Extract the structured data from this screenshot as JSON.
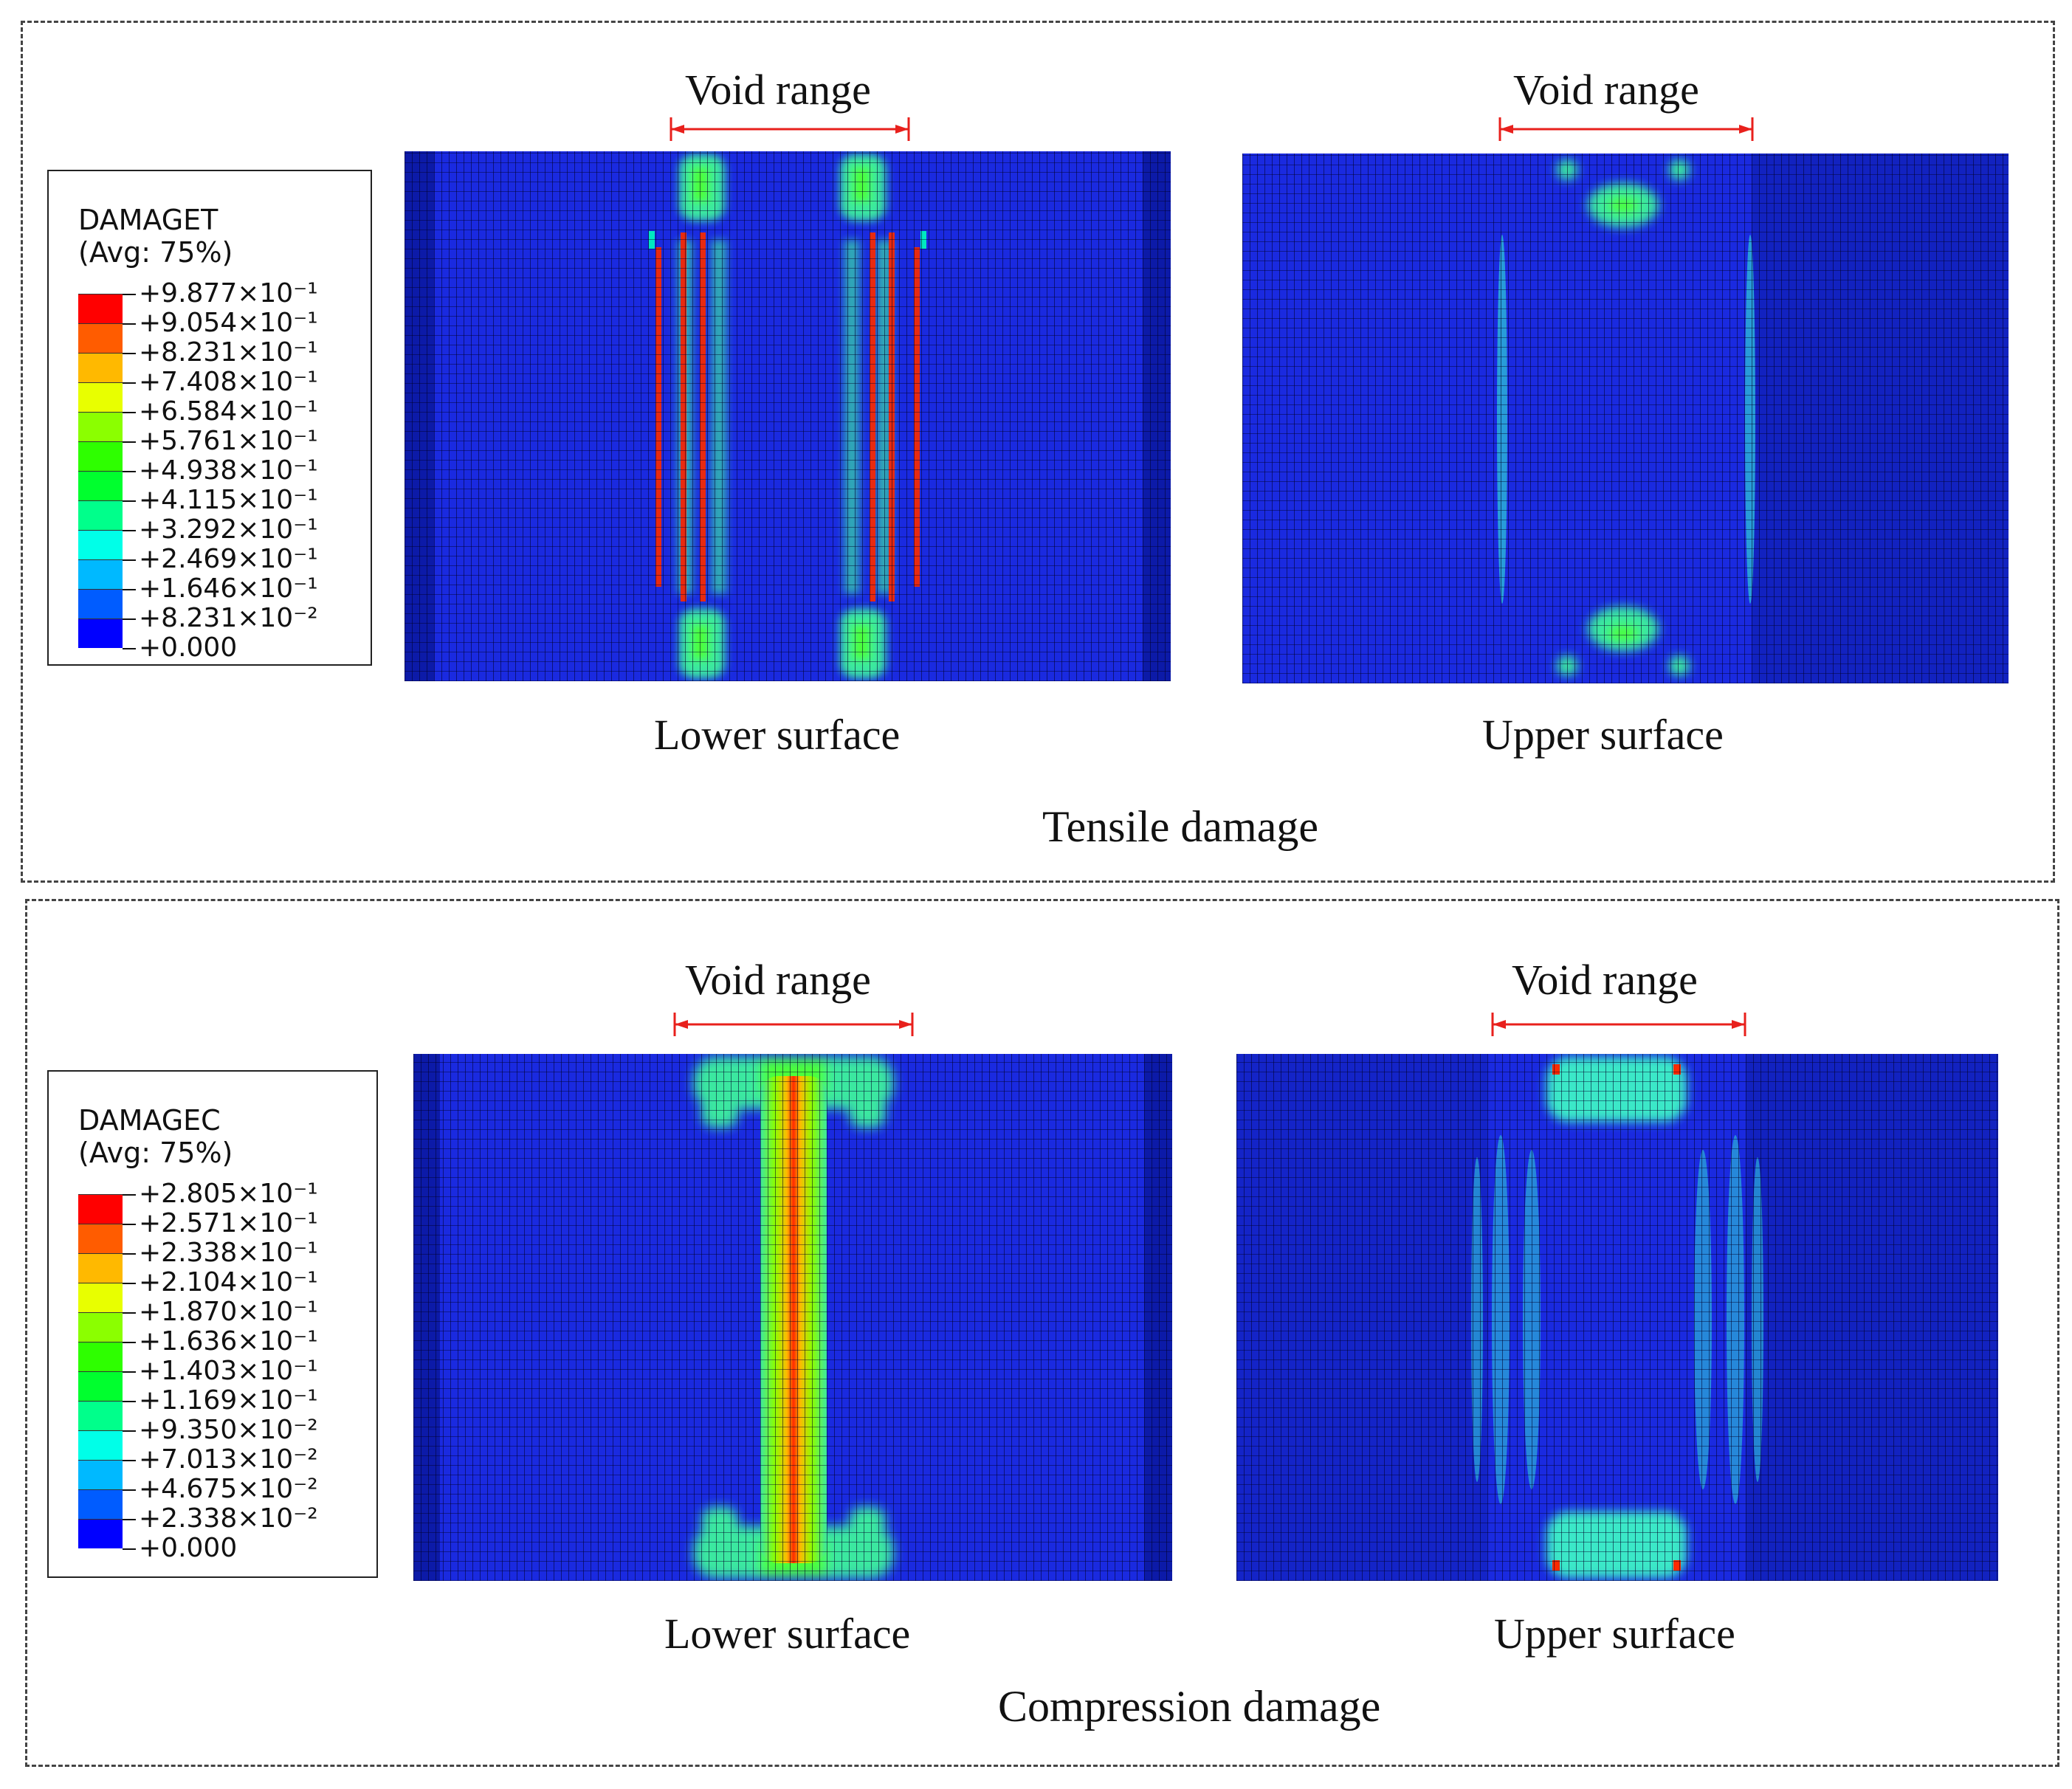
{
  "figure": {
    "colors": {
      "void_bracket": "#e8201c",
      "background_blue": "#1a2ae0",
      "dark_blue": "#0c1aa8"
    },
    "panels": [
      {
        "id": "tensile",
        "caption": "Tensile damage",
        "legend": {
          "variable": "DAMAGET",
          "averaging": "(Avg: 75%)",
          "levels": [
            {
              "label": "+9.877×10⁻¹",
              "color": "#ff0000"
            },
            {
              "label": "+9.054×10⁻¹",
              "color": "#ff5c00"
            },
            {
              "label": "+8.231×10⁻¹",
              "color": "#ffb900"
            },
            {
              "label": "+7.408×10⁻¹",
              "color": "#e8ff00"
            },
            {
              "label": "+6.584×10⁻¹",
              "color": "#8bff00"
            },
            {
              "label": "+5.761×10⁻¹",
              "color": "#2eff00"
            },
            {
              "label": "+4.938×10⁻¹",
              "color": "#00ff2e"
            },
            {
              "label": "+4.115×10⁻¹",
              "color": "#00ff8b"
            },
            {
              "label": "+3.292×10⁻¹",
              "color": "#00ffe8"
            },
            {
              "label": "+2.469×10⁻¹",
              "color": "#00b9ff"
            },
            {
              "label": "+1.646×10⁻¹",
              "color": "#005cff"
            },
            {
              "label": "+8.231×10⁻²",
              "color": "#0000ff"
            }
          ],
          "min_label": "+0.000"
        },
        "views": [
          {
            "void_label": "Void range",
            "surface_label": "Lower surface"
          },
          {
            "void_label": "Void range",
            "surface_label": "Upper surface"
          }
        ]
      },
      {
        "id": "compression",
        "caption": "Compression damage",
        "legend": {
          "variable": "DAMAGEC",
          "averaging": "(Avg: 75%)",
          "levels": [
            {
              "label": "+2.805×10⁻¹",
              "color": "#ff0000"
            },
            {
              "label": "+2.571×10⁻¹",
              "color": "#ff5c00"
            },
            {
              "label": "+2.338×10⁻¹",
              "color": "#ffb900"
            },
            {
              "label": "+2.104×10⁻¹",
              "color": "#e8ff00"
            },
            {
              "label": "+1.870×10⁻¹",
              "color": "#8bff00"
            },
            {
              "label": "+1.636×10⁻¹",
              "color": "#2eff00"
            },
            {
              "label": "+1.403×10⁻¹",
              "color": "#00ff2e"
            },
            {
              "label": "+1.169×10⁻¹",
              "color": "#00ff8b"
            },
            {
              "label": "+9.350×10⁻²",
              "color": "#00ffe8"
            },
            {
              "label": "+7.013×10⁻²",
              "color": "#00b9ff"
            },
            {
              "label": "+4.675×10⁻²",
              "color": "#005cff"
            },
            {
              "label": "+2.338×10⁻²",
              "color": "#0000ff"
            }
          ],
          "min_label": "+0.000"
        },
        "views": [
          {
            "void_label": "Void range",
            "surface_label": "Lower surface"
          },
          {
            "void_label": "Void range",
            "surface_label": "Upper surface"
          }
        ]
      }
    ]
  }
}
